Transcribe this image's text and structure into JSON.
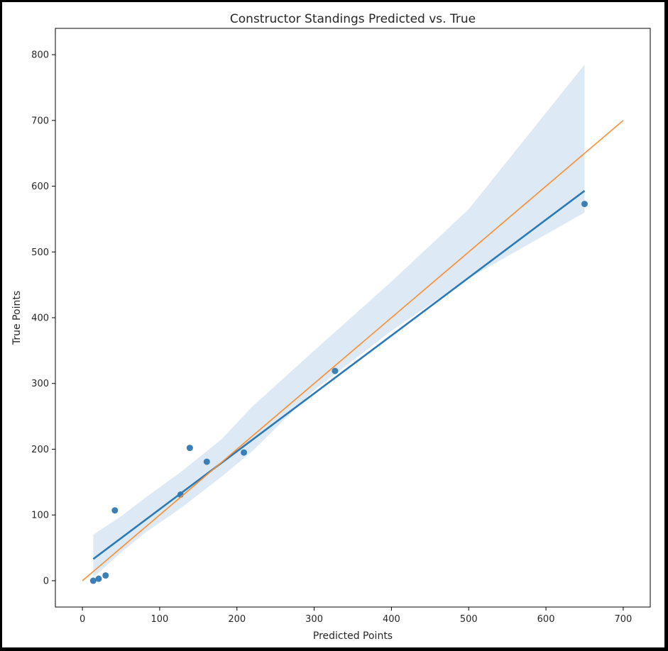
{
  "chart_data": {
    "type": "scatter",
    "title": "Constructor Standings Predicted vs. True",
    "xlabel": "Predicted Points",
    "ylabel": "True Points",
    "xlim": [
      -35,
      735
    ],
    "ylim": [
      -40,
      840
    ],
    "xticks": [
      0,
      100,
      200,
      300,
      400,
      500,
      600,
      700
    ],
    "yticks": [
      0,
      100,
      200,
      300,
      400,
      500,
      600,
      700,
      800
    ],
    "grid": false,
    "colors": {
      "points": "#3a7fb8",
      "regression": "#2a7ab9",
      "confidence_band": "#c6dbef",
      "identity_line": "#ff8c2a"
    },
    "points": [
      {
        "x": 14,
        "y": 0
      },
      {
        "x": 21,
        "y": 3
      },
      {
        "x": 30,
        "y": 8
      },
      {
        "x": 42,
        "y": 107
      },
      {
        "x": 127,
        "y": 131
      },
      {
        "x": 139,
        "y": 202
      },
      {
        "x": 161,
        "y": 181
      },
      {
        "x": 209,
        "y": 195
      },
      {
        "x": 327,
        "y": 319
      },
      {
        "x": 650,
        "y": 573
      }
    ],
    "regression_line": {
      "x": [
        14,
        650
      ],
      "y": [
        33,
        593
      ]
    },
    "confidence_band": {
      "x": [
        14,
        50,
        80,
        127,
        180,
        220,
        300,
        400,
        500,
        650
      ],
      "upper": [
        70,
        98,
        125,
        165,
        215,
        265,
        350,
        455,
        565,
        785
      ],
      "lower": [
        5,
        43,
        72,
        110,
        158,
        197,
        290,
        380,
        460,
        560
      ]
    },
    "identity_line": {
      "x": [
        0,
        700
      ],
      "y": [
        0,
        700
      ]
    }
  }
}
